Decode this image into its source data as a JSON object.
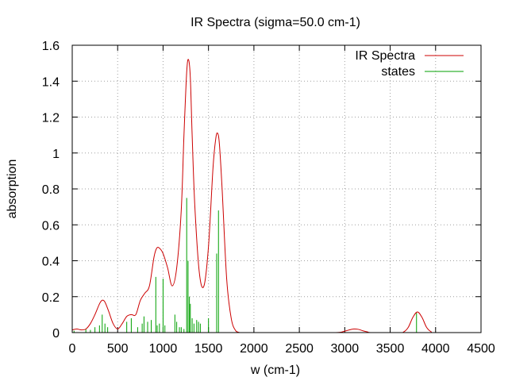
{
  "chart_data": {
    "type": "line",
    "title": "IR Spectra (sigma=50.0 cm-1)",
    "xlabel": "w (cm-1)",
    "ylabel": "absorption",
    "xlim": [
      0,
      4500
    ],
    "ylim": [
      0,
      1.6
    ],
    "xticks": [
      0,
      500,
      1000,
      1500,
      2000,
      2500,
      3000,
      3500,
      4000,
      4500
    ],
    "xtick_labels": [
      "0",
      "500",
      "1000",
      "1500",
      "2000",
      "2500",
      "3000",
      "3500",
      "4000",
      "4500"
    ],
    "yticks": [
      0,
      0.2,
      0.4,
      0.6,
      0.8,
      1,
      1.2,
      1.4,
      1.6
    ],
    "ytick_labels": [
      "0",
      "0.2",
      "0.4",
      "0.6",
      "0.8",
      "1",
      "1.2",
      "1.4",
      "1.6"
    ],
    "grid": true,
    "legend_position": "top-right",
    "series": [
      {
        "name": "IR Spectra",
        "color": "#cc0000",
        "style": "line",
        "x": [
          0,
          50,
          100,
          150,
          200,
          250,
          300,
          330,
          360,
          400,
          450,
          500,
          550,
          600,
          650,
          700,
          750,
          800,
          850,
          900,
          930,
          960,
          1000,
          1050,
          1100,
          1150,
          1200,
          1230,
          1260,
          1280,
          1300,
          1320,
          1350,
          1400,
          1450,
          1500,
          1550,
          1580,
          1600,
          1620,
          1650,
          1700,
          1750,
          1800,
          1850,
          1900,
          2000,
          2500,
          2900,
          3000,
          3050,
          3100,
          3150,
          3200,
          3250,
          3300,
          3600,
          3650,
          3700,
          3750,
          3800,
          3850,
          3900,
          3950,
          4000,
          4500
        ],
        "y": [
          0.015,
          0.02,
          0.015,
          0.02,
          0.05,
          0.1,
          0.16,
          0.18,
          0.17,
          0.12,
          0.05,
          0.02,
          0.05,
          0.09,
          0.1,
          0.1,
          0.18,
          0.22,
          0.26,
          0.42,
          0.47,
          0.47,
          0.44,
          0.36,
          0.26,
          0.36,
          0.68,
          1.1,
          1.45,
          1.52,
          1.42,
          1.1,
          0.7,
          0.33,
          0.26,
          0.48,
          0.92,
          1.08,
          1.11,
          1.05,
          0.8,
          0.3,
          0.08,
          0.01,
          0.0,
          0.0,
          0.0,
          0.0,
          0.0,
          0.008,
          0.015,
          0.02,
          0.018,
          0.01,
          0.004,
          0.0,
          0.0,
          0.004,
          0.03,
          0.085,
          0.115,
          0.085,
          0.03,
          0.005,
          0.0,
          0.0
        ]
      },
      {
        "name": "states",
        "color": "#00a000",
        "style": "impulses",
        "x": [
          20,
          150,
          200,
          250,
          300,
          330,
          360,
          390,
          600,
          650,
          720,
          770,
          790,
          830,
          870,
          920,
          935,
          960,
          1000,
          1020,
          1130,
          1150,
          1180,
          1200,
          1230,
          1260,
          1275,
          1290,
          1300,
          1320,
          1340,
          1370,
          1390,
          1410,
          1500,
          1590,
          1610,
          3790
        ],
        "y": [
          0.01,
          0.02,
          0.015,
          0.03,
          0.04,
          0.1,
          0.05,
          0.03,
          0.06,
          0.08,
          0.03,
          0.05,
          0.09,
          0.06,
          0.07,
          0.31,
          0.04,
          0.05,
          0.3,
          0.04,
          0.1,
          0.06,
          0.03,
          0.03,
          0.02,
          0.75,
          0.4,
          0.2,
          0.16,
          0.08,
          0.05,
          0.07,
          0.06,
          0.05,
          0.08,
          0.44,
          0.68,
          0.11
        ]
      }
    ]
  }
}
